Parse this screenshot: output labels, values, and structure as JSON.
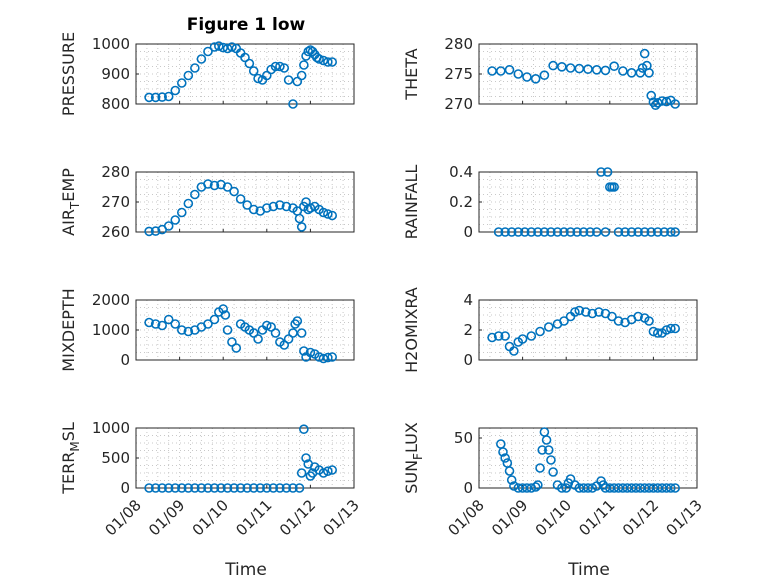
{
  "figure": {
    "title": "Figure 1 low",
    "xlabel": "Time",
    "x_ticks": [
      "01/08",
      "01/09",
      "01/10",
      "01/11",
      "01/12",
      "01/13"
    ],
    "marker_color": "#0072bd",
    "marker": "circle",
    "grid": "on"
  },
  "chart_data": [
    {
      "id": "pressure",
      "type": "scatter",
      "title": "Figure 1 low",
      "ylabel": "PRESSURE",
      "ylim": [
        800,
        1000
      ],
      "yticks": [
        "800",
        "900",
        "1000"
      ],
      "xlabel": "",
      "xlim": [
        8,
        13
      ],
      "x_ticks": [
        "01/08",
        "01/09",
        "01/10",
        "01/11",
        "01/12",
        "01/13"
      ],
      "x": [
        8.3,
        8.45,
        8.6,
        8.75,
        8.9,
        9.05,
        9.2,
        9.35,
        9.5,
        9.65,
        9.8,
        9.9,
        10.0,
        10.1,
        10.2,
        10.3,
        10.4,
        10.5,
        10.6,
        10.7,
        10.8,
        10.9,
        11.0,
        11.1,
        11.2,
        11.3,
        11.4,
        11.5,
        11.6,
        11.7,
        11.8,
        11.85,
        11.9,
        11.95,
        12.0,
        12.05,
        12.1,
        12.15,
        12.2,
        12.3,
        12.4,
        12.5
      ],
      "y": [
        822,
        822,
        823,
        825,
        845,
        870,
        895,
        920,
        950,
        975,
        990,
        993,
        988,
        985,
        990,
        985,
        970,
        955,
        935,
        910,
        885,
        880,
        895,
        915,
        925,
        925,
        920,
        880,
        800,
        875,
        895,
        930,
        960,
        975,
        980,
        975,
        965,
        955,
        950,
        945,
        940,
        940
      ]
    },
    {
      "id": "theta",
      "type": "scatter",
      "title": "",
      "ylabel": "THETA",
      "ylim": [
        270,
        280
      ],
      "yticks": [
        "270",
        "275",
        "280"
      ],
      "xlabel": "",
      "xlim": [
        8,
        13
      ],
      "x_ticks": [
        "01/08",
        "01/09",
        "01/10",
        "01/11",
        "01/12",
        "01/13"
      ],
      "x": [
        8.3,
        8.5,
        8.7,
        8.9,
        9.1,
        9.3,
        9.5,
        9.7,
        9.9,
        10.1,
        10.3,
        10.5,
        10.7,
        10.9,
        11.1,
        11.3,
        11.5,
        11.7,
        11.75,
        11.8,
        11.85,
        11.9,
        11.95,
        12.0,
        12.05,
        12.1,
        12.2,
        12.3,
        12.4,
        12.5
      ],
      "y": [
        275.5,
        275.5,
        275.7,
        275.0,
        274.5,
        274.2,
        274.8,
        276.4,
        276.2,
        276.0,
        275.9,
        275.8,
        275.7,
        275.6,
        276.3,
        275.5,
        275.2,
        275.2,
        276.0,
        278.4,
        276.4,
        275.2,
        271.4,
        270.3,
        269.8,
        270.2,
        270.5,
        270.4,
        270.6,
        270.0
      ]
    },
    {
      "id": "air_temp",
      "type": "scatter",
      "title": "",
      "ylabel": "AIR_TEMP",
      "ylabel_main": "AIR",
      "ylabel_sub": "T",
      "ylabel_end": "EMP",
      "ylim": [
        260,
        280
      ],
      "yticks": [
        "260",
        "270",
        "280"
      ],
      "xlabel": "",
      "xlim": [
        8,
        13
      ],
      "x_ticks": [
        "01/08",
        "01/09",
        "01/10",
        "01/11",
        "01/12",
        "01/13"
      ],
      "x": [
        8.3,
        8.45,
        8.6,
        8.75,
        8.9,
        9.05,
        9.2,
        9.35,
        9.5,
        9.65,
        9.8,
        9.95,
        10.1,
        10.25,
        10.4,
        10.55,
        10.7,
        10.85,
        11.0,
        11.15,
        11.3,
        11.45,
        11.6,
        11.7,
        11.75,
        11.8,
        11.85,
        11.9,
        11.95,
        12.0,
        12.1,
        12.2,
        12.3,
        12.4,
        12.5
      ],
      "y": [
        260.2,
        260.3,
        260.8,
        262.0,
        264.0,
        266.5,
        269.5,
        272.5,
        275.0,
        276.0,
        275.5,
        275.8,
        275.0,
        273.5,
        271.0,
        269.0,
        267.5,
        267.0,
        268.0,
        268.5,
        269.0,
        268.5,
        268.0,
        267.0,
        264.5,
        261.7,
        268.5,
        270.0,
        267.5,
        268.0,
        268.5,
        267.5,
        266.5,
        266.0,
        265.5
      ]
    },
    {
      "id": "rainfall",
      "type": "scatter",
      "title": "",
      "ylabel": "RAINFALL",
      "ylim": [
        0,
        0.4
      ],
      "yticks": [
        "0",
        "0.2",
        "0.4"
      ],
      "xlabel": "",
      "xlim": [
        8,
        13
      ],
      "x_ticks": [
        "01/08",
        "01/09",
        "01/10",
        "01/11",
        "01/12",
        "01/13"
      ],
      "x": [
        8.45,
        8.6,
        8.75,
        8.9,
        9.05,
        9.2,
        9.35,
        9.5,
        9.65,
        9.8,
        9.95,
        10.1,
        10.25,
        10.4,
        10.55,
        10.7,
        10.8,
        10.9,
        10.95,
        11.0,
        11.05,
        11.1,
        11.2,
        11.35,
        11.5,
        11.65,
        11.8,
        11.95,
        12.1,
        12.25,
        12.4,
        12.5
      ],
      "y": [
        0,
        0,
        0,
        0,
        0,
        0,
        0,
        0,
        0,
        0,
        0,
        0,
        0,
        0,
        0,
        0,
        0.4,
        0,
        0.4,
        0.3,
        0.3,
        0.3,
        0,
        0,
        0,
        0,
        0,
        0,
        0,
        0,
        0,
        0
      ]
    },
    {
      "id": "mixdepth",
      "type": "scatter",
      "title": "",
      "ylabel": "MIXDEPTH",
      "ylim": [
        0,
        2000
      ],
      "yticks": [
        "0",
        "1000",
        "2000"
      ],
      "xlabel": "",
      "xlim": [
        8,
        13
      ],
      "x_ticks": [
        "01/08",
        "01/09",
        "01/10",
        "01/11",
        "01/12",
        "01/13"
      ],
      "x": [
        8.3,
        8.45,
        8.6,
        8.75,
        8.9,
        9.05,
        9.2,
        9.35,
        9.5,
        9.65,
        9.8,
        9.9,
        10.0,
        10.05,
        10.1,
        10.2,
        10.3,
        10.4,
        10.5,
        10.6,
        10.7,
        10.8,
        10.9,
        11.0,
        11.1,
        11.2,
        11.3,
        11.4,
        11.5,
        11.6,
        11.65,
        11.7,
        11.8,
        11.85,
        11.9,
        12.0,
        12.1,
        12.2,
        12.3,
        12.4,
        12.5
      ],
      "y": [
        1250,
        1200,
        1150,
        1350,
        1200,
        1000,
        950,
        1000,
        1100,
        1200,
        1350,
        1600,
        1700,
        1500,
        1000,
        600,
        400,
        1200,
        1100,
        1000,
        900,
        700,
        1000,
        1150,
        1100,
        900,
        600,
        500,
        700,
        900,
        1200,
        1300,
        900,
        300,
        100,
        250,
        200,
        100,
        50,
        80,
        100
      ]
    },
    {
      "id": "h2omixra",
      "type": "scatter",
      "title": "",
      "ylabel": "H2OMIXRA",
      "ylim": [
        0,
        4
      ],
      "yticks": [
        "0",
        "2",
        "4"
      ],
      "xlabel": "",
      "xlim": [
        8,
        13
      ],
      "x_ticks": [
        "01/08",
        "01/09",
        "01/10",
        "01/11",
        "01/12",
        "01/13"
      ],
      "x": [
        8.3,
        8.45,
        8.6,
        8.7,
        8.8,
        8.9,
        9.0,
        9.2,
        9.4,
        9.6,
        9.8,
        9.95,
        10.1,
        10.2,
        10.3,
        10.45,
        10.6,
        10.75,
        10.9,
        11.05,
        11.2,
        11.35,
        11.5,
        11.65,
        11.8,
        11.9,
        12.0,
        12.1,
        12.2,
        12.3,
        12.4,
        12.5
      ],
      "y": [
        1.5,
        1.6,
        1.6,
        0.9,
        0.6,
        1.2,
        1.4,
        1.6,
        1.9,
        2.2,
        2.4,
        2.6,
        2.9,
        3.2,
        3.3,
        3.2,
        3.1,
        3.2,
        3.1,
        2.9,
        2.6,
        2.5,
        2.7,
        2.9,
        2.8,
        2.6,
        1.9,
        1.8,
        1.8,
        2.0,
        2.1,
        2.1
      ]
    },
    {
      "id": "terr_msl",
      "type": "scatter",
      "title": "",
      "ylabel": "TERR_MSL",
      "ylabel_main": "TERR",
      "ylabel_sub": "M",
      "ylabel_end": "SL",
      "ylim": [
        0,
        1000
      ],
      "yticks": [
        "0",
        "500",
        "1000"
      ],
      "xlabel": "Time",
      "xlim": [
        8,
        13
      ],
      "x_ticks": [
        "01/08",
        "01/09",
        "01/10",
        "01/11",
        "01/12",
        "01/13"
      ],
      "x": [
        8.3,
        8.45,
        8.6,
        8.75,
        8.9,
        9.05,
        9.2,
        9.35,
        9.5,
        9.65,
        9.8,
        9.95,
        10.1,
        10.25,
        10.4,
        10.55,
        10.7,
        10.85,
        11.0,
        11.15,
        11.3,
        11.45,
        11.6,
        11.75,
        11.8,
        11.85,
        11.9,
        11.95,
        12.0,
        12.05,
        12.1,
        12.2,
        12.3,
        12.4,
        12.5
      ],
      "y": [
        0,
        0,
        0,
        0,
        0,
        0,
        0,
        0,
        0,
        0,
        0,
        0,
        0,
        0,
        0,
        0,
        0,
        0,
        0,
        0,
        0,
        0,
        0,
        0,
        250,
        980,
        500,
        400,
        200,
        250,
        350,
        300,
        250,
        280,
        300
      ]
    },
    {
      "id": "sun_flux",
      "type": "scatter",
      "title": "",
      "ylabel": "SUN_FLUX",
      "ylabel_main": "SUN",
      "ylabel_sub": "F",
      "ylabel_end": "LUX",
      "ylim": [
        0,
        60
      ],
      "yticks": [
        "0",
        "50"
      ],
      "xlabel": "Time",
      "xlim": [
        8,
        13
      ],
      "x_ticks": [
        "01/08",
        "01/09",
        "01/10",
        "01/11",
        "01/12",
        "01/13"
      ],
      "x": [
        8.5,
        8.55,
        8.6,
        8.65,
        8.7,
        8.75,
        8.8,
        8.9,
        9.0,
        9.1,
        9.2,
        9.3,
        9.35,
        9.4,
        9.45,
        9.5,
        9.55,
        9.6,
        9.65,
        9.7,
        9.8,
        9.9,
        10.0,
        10.05,
        10.1,
        10.2,
        10.3,
        10.4,
        10.5,
        10.6,
        10.7,
        10.8,
        10.85,
        10.9,
        11.0,
        11.1,
        11.2,
        11.3,
        11.4,
        11.5,
        11.6,
        11.7,
        11.8,
        11.9,
        12.0,
        12.1,
        12.2,
        12.3,
        12.4,
        12.5
      ],
      "y": [
        44,
        36,
        30,
        25,
        17,
        8,
        2,
        0,
        0,
        0,
        0,
        1,
        3,
        20,
        38,
        56,
        48,
        38,
        28,
        16,
        3,
        0,
        0,
        5,
        9,
        3,
        0,
        0,
        0,
        0,
        2,
        7,
        3,
        0,
        0,
        0,
        0,
        0,
        0,
        0,
        0,
        0,
        0,
        0,
        0,
        0,
        0,
        0,
        0,
        0
      ]
    }
  ]
}
